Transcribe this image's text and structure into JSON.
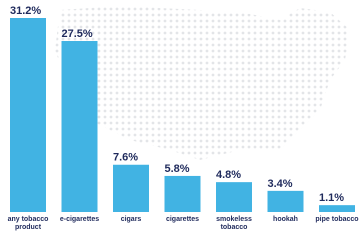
{
  "chart_data": {
    "type": "bar",
    "categories": [
      "any tobacco product",
      "e-cigarettes",
      "cigars",
      "cigarettes",
      "smokeless tobacco",
      "hookah",
      "pipe tobacco"
    ],
    "values": [
      31.2,
      27.5,
      7.6,
      5.8,
      4.8,
      3.4,
      1.1
    ],
    "value_labels": [
      "31.2%",
      "27.5%",
      "7.6%",
      "5.8%",
      "4.8%",
      "3.4%",
      "1.1%"
    ],
    "color": "#41b3e3"
  }
}
